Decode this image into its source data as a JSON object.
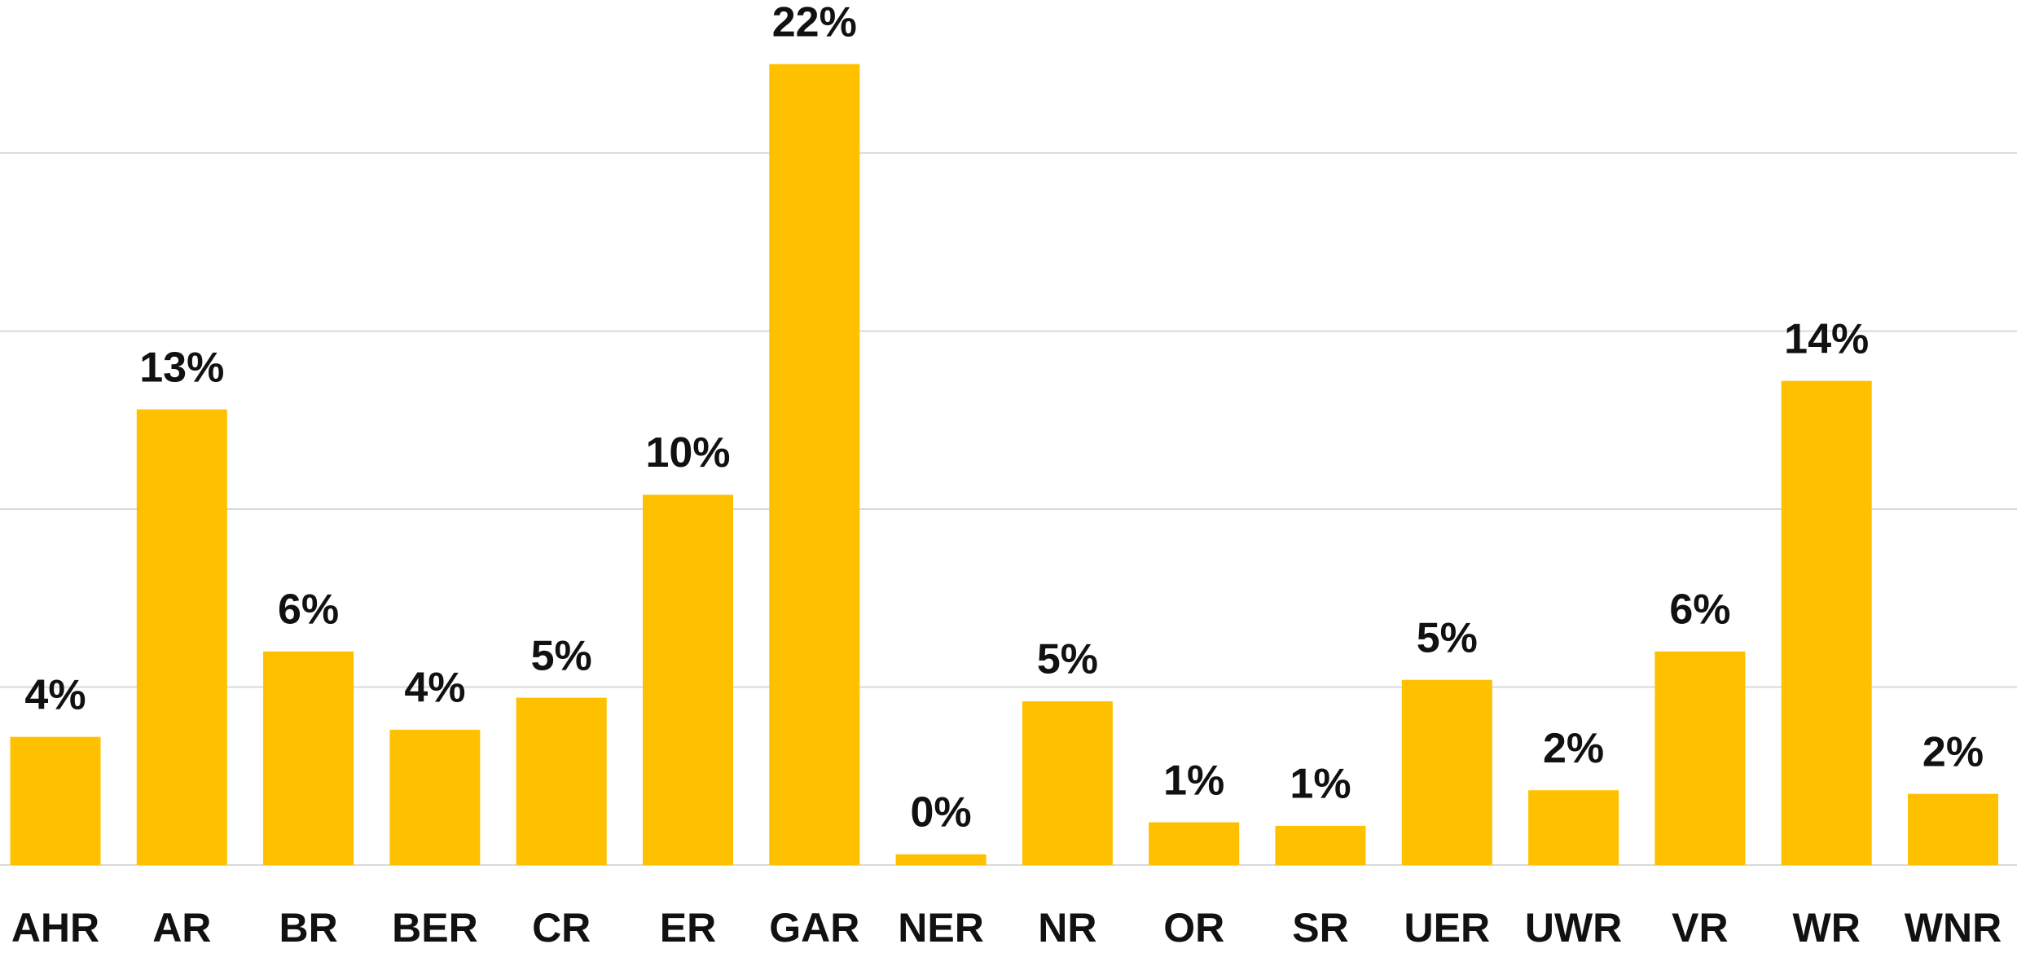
{
  "chart_data": {
    "type": "bar",
    "categories": [
      "AHR",
      "AR",
      "BR",
      "BER",
      "CR",
      "ER",
      "GAR",
      "NER",
      "NR",
      "OR",
      "SR",
      "UER",
      "UWR",
      "VR",
      "WR",
      "WNR"
    ],
    "values": [
      3.6,
      12.8,
      6.0,
      3.8,
      4.7,
      10.4,
      22.5,
      0.3,
      4.6,
      1.2,
      1.1,
      5.2,
      2.1,
      6.0,
      13.6,
      2.0
    ],
    "value_labels": [
      "4%",
      "13%",
      "6%",
      "4%",
      "5%",
      "10%",
      "22%",
      "0%",
      "5%",
      "1%",
      "1%",
      "5%",
      "2%",
      "6%",
      "14%",
      "2%"
    ],
    "color": "#FFC000",
    "ylim": [
      0,
      24.3
    ],
    "yticks": [
      0,
      5,
      10,
      15,
      20
    ],
    "grid": true
  }
}
